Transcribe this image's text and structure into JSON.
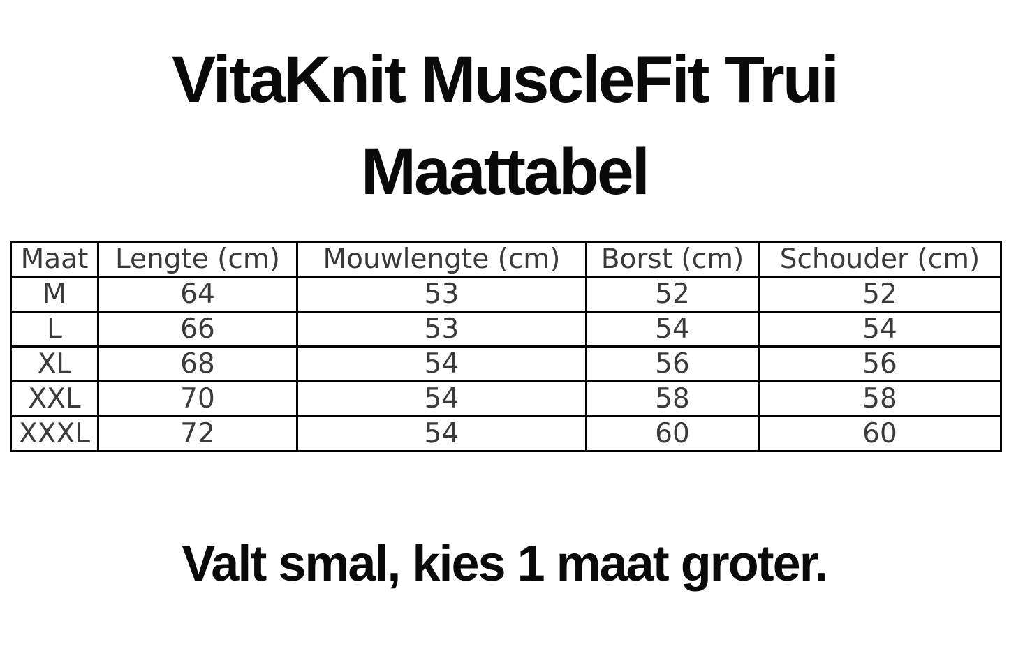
{
  "title": {
    "line1": "VitaKnit MuscleFit Trui",
    "line2": "Maattabel"
  },
  "table": {
    "headers": [
      "Maat",
      "Lengte (cm)",
      "Mouwlengte (cm)",
      "Borst (cm)",
      "Schouder (cm)"
    ],
    "rows": [
      [
        "M",
        "64",
        "53",
        "52",
        "52"
      ],
      [
        "L",
        "66",
        "53",
        "54",
        "54"
      ],
      [
        "XL",
        "68",
        "54",
        "56",
        "56"
      ],
      [
        "XXL",
        "70",
        "54",
        "58",
        "58"
      ],
      [
        "XXXL",
        "72",
        "54",
        "60",
        "60"
      ]
    ]
  },
  "footer": {
    "note": "Valt smal, kies 1 maat groter."
  },
  "colors": {
    "background": "#ffffff",
    "title_text": "#0a0a0a",
    "table_text": "#3a3a3a",
    "table_border": "#000000"
  }
}
